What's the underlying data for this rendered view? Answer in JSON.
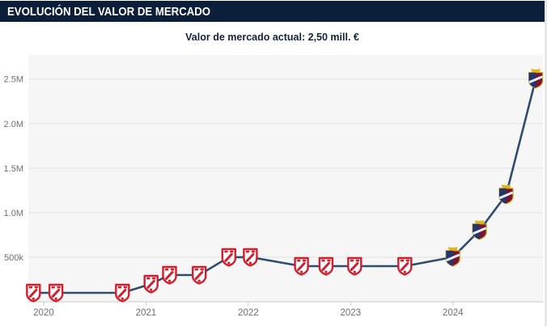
{
  "header": {
    "title": "EVOLUCIÓN DEL VALOR DE MERCADO",
    "bg_color": "#0b1f3a",
    "text_color": "#ffffff"
  },
  "subtitle": {
    "text": "Valor de mercado actual: 2,50 mill. €",
    "color": "#13233d"
  },
  "chart_data": {
    "type": "line",
    "title": "Evolución del valor de mercado",
    "xlabel": "",
    "ylabel": "",
    "x_ticks": [
      2020,
      2021,
      2022,
      2023,
      2024
    ],
    "x_tick_labels": [
      "2020",
      "2021",
      "2022",
      "2023",
      "2024"
    ],
    "y_ticks": [
      500000,
      1000000,
      1500000,
      2000000,
      2500000
    ],
    "y_tick_labels": [
      "500k",
      "1.0M",
      "1.5M",
      "2.0M",
      "2.5M"
    ],
    "xlim": [
      2019.85,
      2024.88
    ],
    "ylim": [
      0,
      2770000
    ],
    "grid": true,
    "legend": false,
    "plot_bg": "#f6f6f6",
    "grid_color": "#e2e2e2",
    "axis_color": "#c9c9c9",
    "tick_label_color": "#6f6f6f",
    "line_color": "#2e4d6e",
    "series": [
      {
        "name": "Valor de mercado",
        "points": [
          {
            "x": 2019.9,
            "y": 100000,
            "club": "club-red"
          },
          {
            "x": 2020.12,
            "y": 100000,
            "club": "club-red"
          },
          {
            "x": 2020.77,
            "y": 100000,
            "club": "club-red"
          },
          {
            "x": 2021.05,
            "y": 200000,
            "club": "club-red"
          },
          {
            "x": 2021.23,
            "y": 300000,
            "club": "club-red"
          },
          {
            "x": 2021.52,
            "y": 300000,
            "club": "club-red"
          },
          {
            "x": 2021.81,
            "y": 500000,
            "club": "club-red"
          },
          {
            "x": 2022.02,
            "y": 500000,
            "club": "club-red"
          },
          {
            "x": 2022.52,
            "y": 400000,
            "club": "club-red"
          },
          {
            "x": 2022.76,
            "y": 400000,
            "club": "club-red"
          },
          {
            "x": 2023.04,
            "y": 400000,
            "club": "club-red"
          },
          {
            "x": 2023.53,
            "y": 400000,
            "club": "club-red"
          },
          {
            "x": 2024.0,
            "y": 500000,
            "club": "club-dark"
          },
          {
            "x": 2024.26,
            "y": 800000,
            "club": "club-dark"
          },
          {
            "x": 2024.52,
            "y": 1200000,
            "club": "club-dark"
          },
          {
            "x": 2024.81,
            "y": 2500000,
            "club": "club-dark"
          }
        ]
      }
    ],
    "markers": {
      "club-red": {
        "shield_fill": "#ffffff",
        "accent": "#d21f2d"
      },
      "club-dark": {
        "left_fill": "#24356f",
        "right_fill": "#76152f",
        "crown": "#e2b71e",
        "band": "#e8eef5",
        "outline": "#caa31f"
      }
    }
  }
}
